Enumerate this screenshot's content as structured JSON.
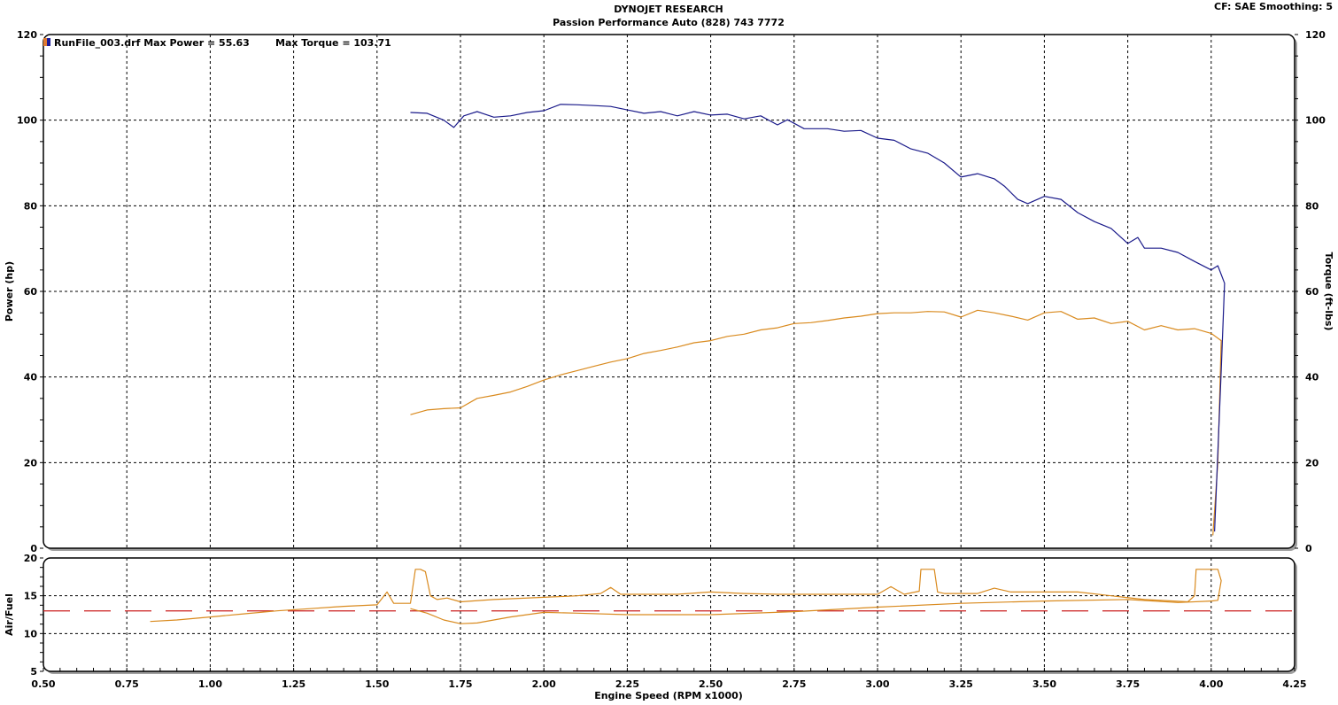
{
  "header": {
    "title": "DYNOJET RESEARCH",
    "subtitle": "Passion Performance Auto (828) 743 7772",
    "settings": "CF: SAE  Smoothing: 5"
  },
  "legend": {
    "run_label": "RunFile_003.drf Max Power = 55.63",
    "torque_label": "Max Torque = 103.71",
    "swatch_colors": [
      "#e07a30",
      "#1a1a9a"
    ]
  },
  "chart_data": [
    {
      "type": "line",
      "xlabel": "Engine Speed (RPM x1000)",
      "ylabel": "Power (hp)",
      "y2label": "Torque (ft-lbs)",
      "xlim": [
        0.5,
        4.25
      ],
      "ylim": [
        0,
        120
      ],
      "y2lim": [
        0,
        120
      ],
      "x_ticks": [
        "0.50",
        "0.75",
        "1.00",
        "1.25",
        "1.50",
        "1.75",
        "2.00",
        "2.25",
        "2.50",
        "2.75",
        "3.00",
        "3.25",
        "3.50",
        "3.75",
        "4.00",
        "4.25"
      ],
      "y_ticks": [
        "0",
        "20",
        "40",
        "60",
        "80",
        "100",
        "120"
      ],
      "y2_ticks": [
        "0",
        "20",
        "40",
        "60",
        "80",
        "100",
        "120"
      ],
      "grid": true,
      "legend_position": "top-left",
      "series": [
        {
          "key": "power",
          "color": "#d98a1e",
          "axis": "left",
          "x": [
            1.6,
            1.65,
            1.7,
            1.75,
            1.8,
            1.85,
            1.9,
            1.95,
            2.0,
            2.05,
            2.1,
            2.15,
            2.2,
            2.25,
            2.3,
            2.35,
            2.4,
            2.45,
            2.5,
            2.55,
            2.6,
            2.65,
            2.7,
            2.75,
            2.8,
            2.85,
            2.9,
            2.95,
            3.0,
            3.05,
            3.1,
            3.15,
            3.2,
            3.25,
            3.3,
            3.35,
            3.4,
            3.45,
            3.5,
            3.55,
            3.6,
            3.65,
            3.7,
            3.75,
            3.8,
            3.85,
            3.9,
            3.95,
            4.0,
            4.03,
            4.02,
            4.005
          ],
          "y": [
            31.2,
            32.3,
            32.6,
            32.8,
            35.0,
            35.7,
            36.5,
            37.8,
            39.3,
            40.5,
            41.5,
            42.5,
            43.5,
            44.3,
            45.5,
            46.2,
            47.0,
            48.0,
            48.5,
            49.5,
            50.0,
            51.0,
            51.5,
            52.5,
            52.7,
            53.2,
            53.8,
            54.2,
            54.8,
            55.0,
            55.0,
            55.3,
            55.2,
            54.0,
            55.6,
            55.0,
            54.2,
            53.3,
            55.0,
            55.3,
            53.5,
            53.8,
            52.5,
            53.0,
            51.0,
            52.0,
            51.0,
            51.3,
            50.2,
            48.5,
            20.0,
            3.0
          ]
        },
        {
          "key": "torque",
          "color": "#1a1a8a",
          "axis": "right",
          "x": [
            1.6,
            1.65,
            1.7,
            1.73,
            1.76,
            1.8,
            1.85,
            1.9,
            1.95,
            2.0,
            2.05,
            2.1,
            2.15,
            2.2,
            2.25,
            2.3,
            2.35,
            2.4,
            2.45,
            2.5,
            2.55,
            2.6,
            2.65,
            2.7,
            2.73,
            2.78,
            2.85,
            2.9,
            2.95,
            3.0,
            3.05,
            3.1,
            3.15,
            3.2,
            3.25,
            3.3,
            3.35,
            3.38,
            3.42,
            3.45,
            3.5,
            3.55,
            3.6,
            3.65,
            3.7,
            3.75,
            3.78,
            3.8,
            3.85,
            3.9,
            3.95,
            4.0,
            4.02,
            4.04,
            4.03,
            4.01
          ],
          "y": [
            101.8,
            101.6,
            100.0,
            98.3,
            101.0,
            102.0,
            100.7,
            101.0,
            101.8,
            102.2,
            103.7,
            103.6,
            103.4,
            103.2,
            102.4,
            101.6,
            102.0,
            101.0,
            102.0,
            101.2,
            101.4,
            100.3,
            101.0,
            98.9,
            100.1,
            98.0,
            98.0,
            97.4,
            97.6,
            95.8,
            95.3,
            93.3,
            92.3,
            90.0,
            86.7,
            87.5,
            86.3,
            84.6,
            81.5,
            80.5,
            82.2,
            81.5,
            78.4,
            76.3,
            74.7,
            71.2,
            72.6,
            70.1,
            70.1,
            69.1,
            67.0,
            65.0,
            66.0,
            61.9,
            41.4,
            3.9
          ]
        }
      ]
    },
    {
      "type": "line",
      "xlabel": "Engine Speed (RPM x1000)",
      "ylabel": "Air/Fuel",
      "xlim": [
        0.5,
        4.25
      ],
      "ylim": [
        5,
        20
      ],
      "y_ticks": [
        "5",
        "10",
        "15",
        "20"
      ],
      "grid": true,
      "reference_line": {
        "y": 13.0,
        "color": "#cc2222",
        "style": "dashed"
      },
      "series": [
        {
          "key": "afr-a",
          "color": "#d98a1e",
          "x": [
            0.82,
            0.9,
            1.0,
            1.1,
            1.2,
            1.3,
            1.4,
            1.5,
            1.53,
            1.55,
            1.6,
            1.615,
            1.63,
            1.645,
            1.66,
            1.68,
            1.71,
            1.75,
            1.85,
            2.0,
            2.1,
            2.17,
            2.2,
            2.23,
            2.3,
            2.4,
            2.5,
            2.6,
            2.7,
            3.0,
            3.04,
            3.08,
            3.125,
            3.13,
            3.17,
            3.18,
            3.2,
            3.3,
            3.35,
            3.4,
            3.45,
            3.6,
            3.7,
            3.8,
            3.93,
            3.95,
            3.955,
            4.02,
            4.03,
            4.02,
            4.0
          ],
          "y": [
            11.6,
            11.8,
            12.2,
            12.6,
            13.0,
            13.3,
            13.6,
            13.8,
            15.5,
            14.0,
            14.0,
            18.5,
            18.5,
            18.2,
            15.0,
            14.5,
            14.7,
            14.2,
            14.5,
            14.8,
            15.0,
            15.3,
            16.1,
            15.2,
            15.2,
            15.2,
            15.5,
            15.3,
            15.2,
            15.2,
            16.2,
            15.2,
            15.6,
            18.5,
            18.5,
            15.5,
            15.3,
            15.3,
            16.0,
            15.5,
            15.5,
            15.5,
            15.0,
            14.5,
            14.2,
            15.0,
            18.5,
            18.5,
            17.0,
            14.4,
            14.3
          ]
        },
        {
          "key": "afr-b",
          "color": "#d98a1e",
          "x": [
            1.6,
            1.65,
            1.7,
            1.75,
            1.8,
            1.9,
            2.0,
            2.1,
            2.25,
            2.5,
            2.75,
            3.0,
            3.25,
            3.5,
            3.75,
            3.9,
            4.0
          ],
          "y": [
            13.3,
            12.7,
            11.8,
            11.3,
            11.4,
            12.2,
            12.8,
            12.7,
            12.5,
            12.5,
            12.9,
            13.5,
            14.0,
            14.3,
            14.5,
            14.1,
            14.3
          ]
        }
      ]
    }
  ]
}
